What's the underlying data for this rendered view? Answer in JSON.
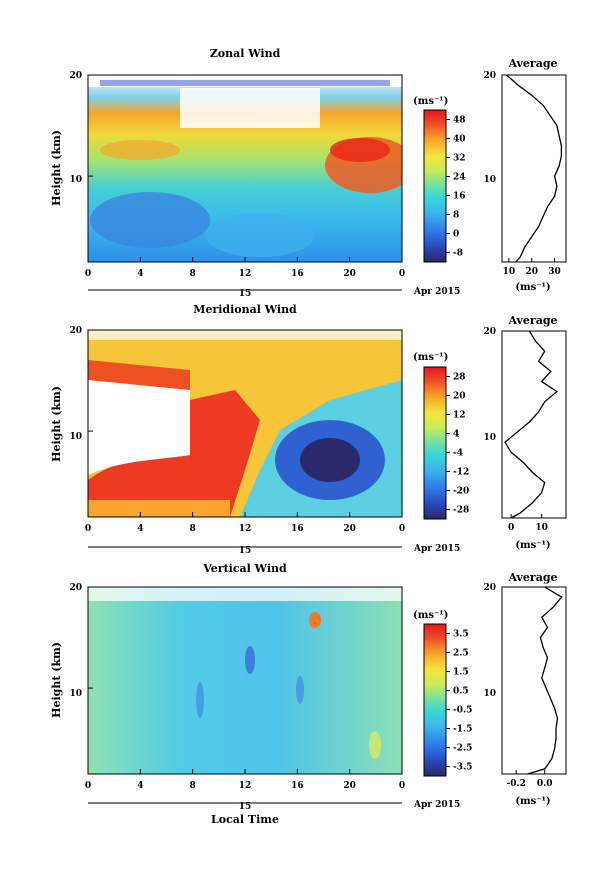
{
  "chart_data": [
    {
      "type": "heatmap",
      "title": "Zonal Wind",
      "ylabel": "Height (km)",
      "units": "(ms⁻¹)",
      "x_ticks": [
        "0",
        "4",
        "8",
        "12",
        "16",
        "20",
        "0"
      ],
      "x_range": [
        0,
        24
      ],
      "y_ticks": [
        "20",
        "10"
      ],
      "y_range": [
        1.5,
        20
      ],
      "date_label": "15",
      "date_suffix": "Apr 2015",
      "colorbar_ticks": [
        "48",
        "40",
        "32",
        "24",
        "16",
        "8",
        "0",
        "-8"
      ],
      "colorbar_range": [
        -12,
        52
      ],
      "profile": {
        "title": "Average",
        "x_ticks": [
          "10",
          "20",
          "30"
        ],
        "xlim": [
          7,
          35
        ],
        "xlabel": "(ms⁻¹)",
        "y_ticks": [
          "20",
          "10"
        ],
        "heights": [
          1.5,
          2,
          3,
          4,
          5,
          6,
          7,
          8,
          9,
          10,
          11,
          12,
          13,
          14,
          15,
          16,
          17,
          18,
          19,
          20
        ],
        "values": [
          13,
          15,
          17,
          20,
          23,
          25,
          27,
          30,
          31,
          30,
          32,
          33,
          33,
          32,
          31,
          28,
          25,
          20,
          14,
          9
        ]
      }
    },
    {
      "type": "heatmap",
      "title": "Meridional Wind",
      "ylabel": "Height (km)",
      "units": "(ms⁻¹)",
      "x_ticks": [
        "0",
        "4",
        "8",
        "12",
        "16",
        "20",
        "0"
      ],
      "x_range": [
        0,
        24
      ],
      "y_ticks": [
        "20",
        "10"
      ],
      "y_range": [
        1.5,
        20
      ],
      "date_label": "15",
      "date_suffix": "Apr 2015",
      "colorbar_ticks": [
        "28",
        "20",
        "12",
        "4",
        "-4",
        "-12",
        "-20",
        "-28"
      ],
      "colorbar_range": [
        -32,
        32
      ],
      "profile": {
        "title": "Average",
        "x_ticks": [
          "0",
          "10"
        ],
        "xlim": [
          -3,
          18
        ],
        "xlabel": "(ms⁻¹)",
        "y_ticks": [
          "20",
          "10"
        ],
        "heights": [
          1.5,
          2,
          3,
          4,
          5,
          6,
          7,
          8,
          9,
          10,
          11,
          12,
          13,
          14,
          15,
          16,
          17,
          18,
          19,
          20
        ],
        "values": [
          0,
          3,
          7,
          10,
          11,
          7,
          4,
          0,
          -2,
          2,
          6,
          9,
          11,
          15,
          10,
          13,
          9,
          11,
          8,
          6
        ]
      }
    },
    {
      "type": "heatmap",
      "title": "Vertical Wind",
      "ylabel": "Height (km)",
      "xlabel": "Local Time",
      "units": "(ms⁻¹)",
      "x_ticks": [
        "0",
        "4",
        "8",
        "12",
        "16",
        "20",
        "0"
      ],
      "x_range": [
        0,
        24
      ],
      "y_ticks": [
        "20",
        "10"
      ],
      "y_range": [
        1.5,
        20
      ],
      "date_label": "15",
      "date_suffix": "Apr 2015",
      "colorbar_ticks": [
        "3.5",
        "2.5",
        "1.5",
        "0.5",
        "-0.5",
        "-1.5",
        "-2.5",
        "-3.5"
      ],
      "colorbar_range": [
        -4,
        4
      ],
      "profile": {
        "title": "Average",
        "x_ticks": [
          "-0.2",
          "0.0"
        ],
        "xlim": [
          -0.3,
          0.15
        ],
        "xlabel": "(ms⁻¹)",
        "y_ticks": [
          "20",
          "10"
        ],
        "heights": [
          1.5,
          2,
          3,
          4,
          5,
          6,
          7,
          8,
          9,
          10,
          11,
          12,
          13,
          14,
          15,
          16,
          17,
          18,
          19,
          20
        ],
        "values": [
          -0.12,
          0.0,
          0.05,
          0.07,
          0.08,
          0.08,
          0.09,
          0.07,
          0.04,
          0.01,
          -0.02,
          0.0,
          0.02,
          -0.01,
          -0.03,
          0.02,
          -0.02,
          0.06,
          0.12,
          0.0
        ]
      }
    }
  ]
}
